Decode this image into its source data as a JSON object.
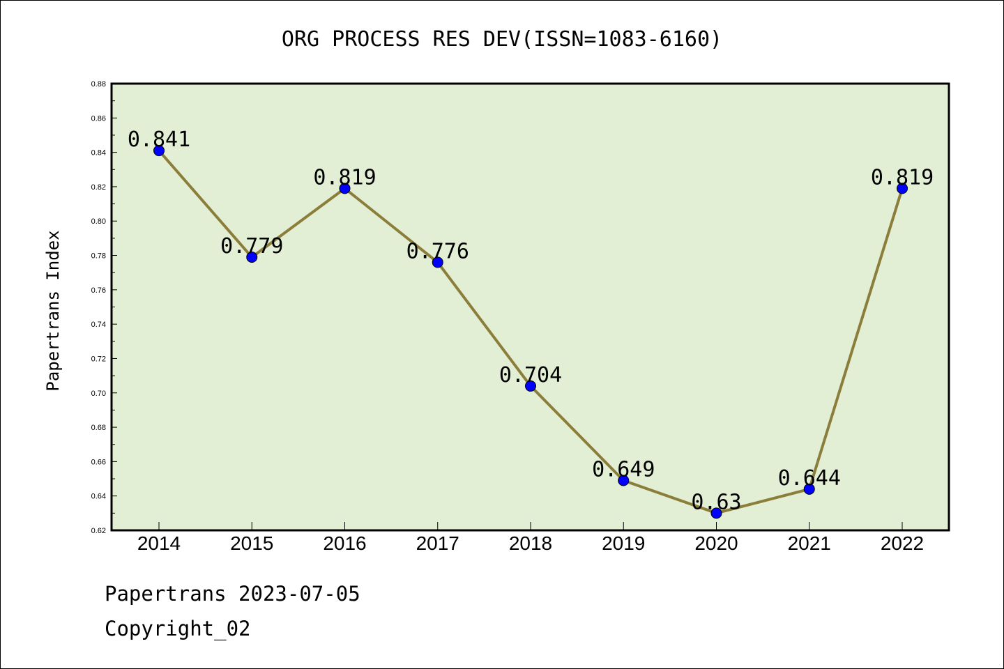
{
  "chart_data": {
    "type": "line",
    "title": "ORG PROCESS RES DEV(ISSN=1083-6160)",
    "xlabel": "",
    "ylabel": "Papertrans Index",
    "categories": [
      "2014",
      "2015",
      "2016",
      "2017",
      "2018",
      "2019",
      "2020",
      "2021",
      "2022"
    ],
    "values": [
      0.841,
      0.779,
      0.819,
      0.776,
      0.704,
      0.649,
      0.63,
      0.644,
      0.819
    ],
    "data_labels": [
      "0.841",
      "0.779",
      "0.819",
      "0.776",
      "0.704",
      "0.649",
      "0.63",
      "0.644",
      "0.819"
    ],
    "ylim": [
      0.62,
      0.88
    ],
    "yticks": [
      "0.62",
      "0.64",
      "0.66",
      "0.68",
      "0.70",
      "0.72",
      "0.74",
      "0.76",
      "0.78",
      "0.80",
      "0.82",
      "0.84",
      "0.86",
      "0.88"
    ],
    "grid": false,
    "colors": {
      "line": "#8b7d3a",
      "marker": "#0000ff",
      "plot_background": "#e2efd5"
    }
  },
  "footer": {
    "line1": "Papertrans 2023-07-05",
    "line2": "Copyright_02"
  }
}
